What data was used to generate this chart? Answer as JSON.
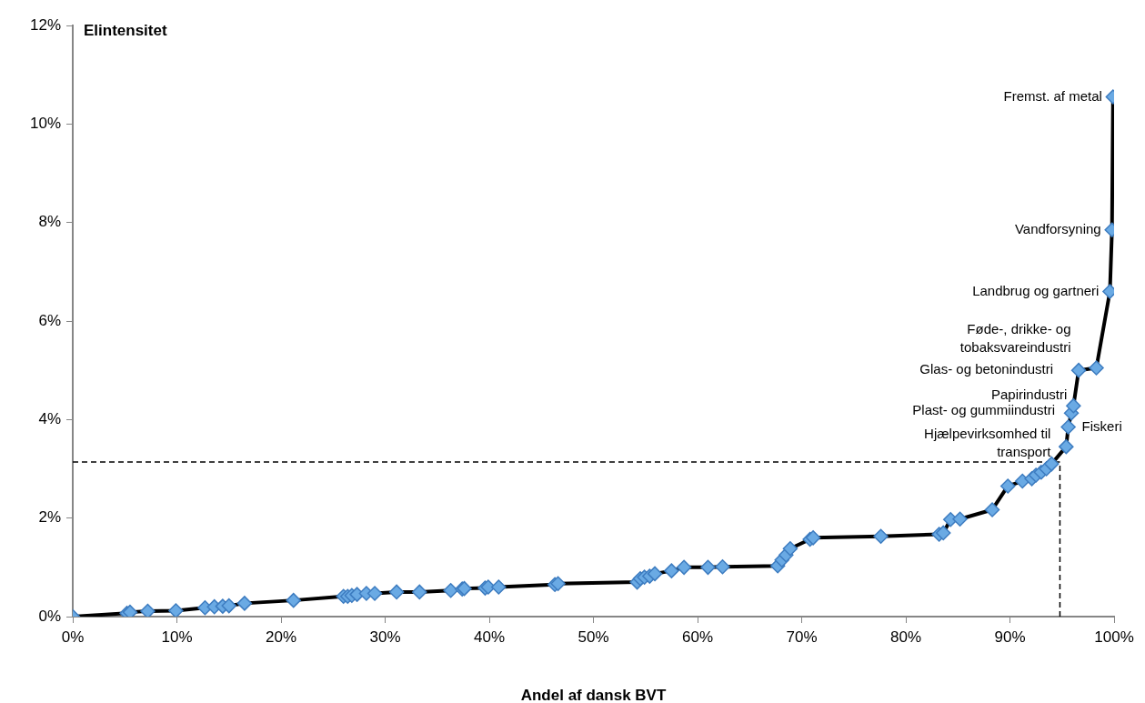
{
  "chart_data": {
    "type": "line",
    "ylabel": "Elintensitet",
    "xlabel": "Andel af dansk BVT",
    "x": [
      0,
      5.2,
      5.5,
      7.2,
      9.9,
      12.7,
      13.6,
      14.4,
      15.0,
      16.5,
      21.2,
      26.0,
      26.4,
      26.8,
      27.3,
      28.2,
      29.0,
      31.1,
      33.3,
      36.3,
      37.4,
      37.6,
      39.6,
      39.9,
      40.9,
      46.3,
      46.6,
      54.2,
      54.5,
      54.9,
      55.4,
      55.9,
      57.5,
      58.7,
      61.0,
      62.4,
      67.7,
      68.1,
      68.5,
      68.9,
      70.8,
      71.1,
      77.6,
      83.2,
      83.6,
      84.3,
      85.2,
      88.3,
      89.8,
      91.2,
      92.1,
      92.5,
      93.0,
      93.5,
      94.0,
      95.4,
      95.6,
      95.9,
      96.1,
      96.6,
      98.3,
      99.6,
      99.8,
      99.9
    ],
    "series": [
      {
        "color": "#6aaae4",
        "values": [
          0,
          0.07,
          0.09,
          0.11,
          0.12,
          0.18,
          0.2,
          0.21,
          0.22,
          0.27,
          0.33,
          0.41,
          0.41,
          0.43,
          0.45,
          0.47,
          0.47,
          0.5,
          0.5,
          0.53,
          0.56,
          0.57,
          0.58,
          0.6,
          0.6,
          0.65,
          0.67,
          0.7,
          0.77,
          0.8,
          0.82,
          0.87,
          0.93,
          1.0,
          1.0,
          1.01,
          1.03,
          1.15,
          1.25,
          1.38,
          1.57,
          1.6,
          1.63,
          1.67,
          1.7,
          1.97,
          1.98,
          2.17,
          2.65,
          2.75,
          2.8,
          2.87,
          2.93,
          3.0,
          3.1,
          3.45,
          3.85,
          4.13,
          4.28,
          5.0,
          5.05,
          6.6,
          7.85,
          10.55
        ]
      }
    ],
    "marker": "diamond",
    "line_style": "solid",
    "xlim": [
      0,
      100
    ],
    "xticks": [
      {
        "value": 0,
        "label": "0%"
      },
      {
        "value": 10,
        "label": "10%"
      },
      {
        "value": 20,
        "label": "20%"
      },
      {
        "value": 30,
        "label": "30%"
      },
      {
        "value": 40,
        "label": "40%"
      },
      {
        "value": 50,
        "label": "50%"
      },
      {
        "value": 60,
        "label": "60%"
      },
      {
        "value": 70,
        "label": "70%"
      },
      {
        "value": 80,
        "label": "80%"
      },
      {
        "value": 90,
        "label": "90%"
      },
      {
        "value": 100,
        "label": "100%"
      }
    ],
    "ylim": [
      0,
      12
    ],
    "yticks": [
      {
        "value": 0,
        "label": "0%"
      },
      {
        "value": 2,
        "label": "2%"
      },
      {
        "value": 4,
        "label": "4%"
      },
      {
        "value": 6,
        "label": "6%"
      },
      {
        "value": 8,
        "label": "8%"
      },
      {
        "value": 10,
        "label": "10%"
      },
      {
        "value": 12,
        "label": "12%"
      }
    ],
    "grid": false,
    "legend": false,
    "ref_lines": [
      {
        "axis": "y",
        "value": 3.14,
        "line_style": "dashed",
        "color": "#000000"
      },
      {
        "axis": "x",
        "value": 94.8,
        "line_style": "dashed",
        "color": "#000000"
      }
    ],
    "annotations": [
      {
        "text": "Fremst. af metal",
        "x": 99.9,
        "y": 10.55
      },
      {
        "text": "Vandforsyning",
        "x": 99.8,
        "y": 7.85
      },
      {
        "text": "Landbrug og gartneri",
        "x": 99.6,
        "y": 6.6
      },
      {
        "text": "Føde-, drikke- og\ntobaksvareindustri",
        "x": 98.3,
        "y": 5.05
      },
      {
        "text": "Glas- og betonindustri",
        "x": 96.6,
        "y": 5.0
      },
      {
        "text": "Papirindustri",
        "x": 96.1,
        "y": 4.28
      },
      {
        "text": "Plast- og gummiindustri",
        "x": 95.9,
        "y": 4.13
      },
      {
        "text": "Fiskeri",
        "x": 95.6,
        "y": 3.85
      },
      {
        "text": "Hjælpevirksomhed til\ntransport",
        "x": 95.4,
        "y": 3.45
      }
    ]
  }
}
